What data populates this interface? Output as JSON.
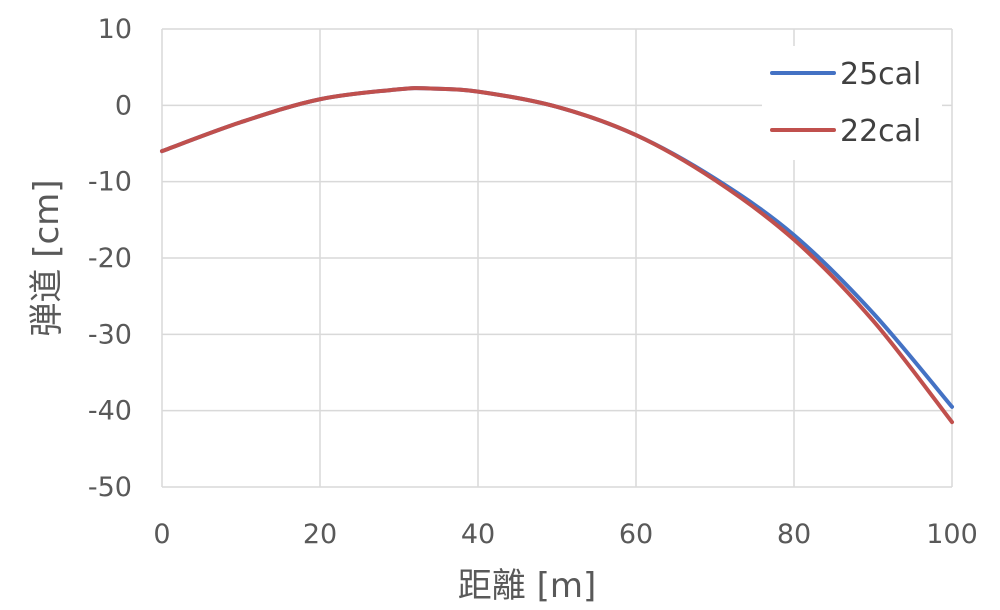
{
  "chart_data": {
    "type": "line",
    "title": "",
    "xlabel": "距離 [m]",
    "ylabel": "弾道 [cm]",
    "xlim": [
      0,
      100
    ],
    "ylim": [
      -50,
      10
    ],
    "x_ticks": [
      "0",
      "20",
      "40",
      "60",
      "80",
      "100"
    ],
    "y_ticks": [
      "10",
      "0",
      "-10",
      "-20",
      "-30",
      "-40",
      "-50"
    ],
    "grid": true,
    "legend_position": "top-right",
    "x": [
      0,
      10,
      20,
      30,
      34,
      40,
      50,
      60,
      70,
      80,
      90,
      100
    ],
    "series": [
      {
        "name": "25cal",
        "color": "#4472c4",
        "values": [
          -6.0,
          -2.2,
          0.8,
          2.1,
          2.2,
          1.8,
          -0.2,
          -3.9,
          -9.6,
          -17.0,
          -27.2,
          -39.5
        ]
      },
      {
        "name": "22cal",
        "color": "#c0504d",
        "values": [
          -6.0,
          -2.2,
          0.8,
          2.1,
          2.2,
          1.8,
          -0.2,
          -3.9,
          -9.8,
          -17.6,
          -28.2,
          -41.5
        ]
      }
    ]
  }
}
